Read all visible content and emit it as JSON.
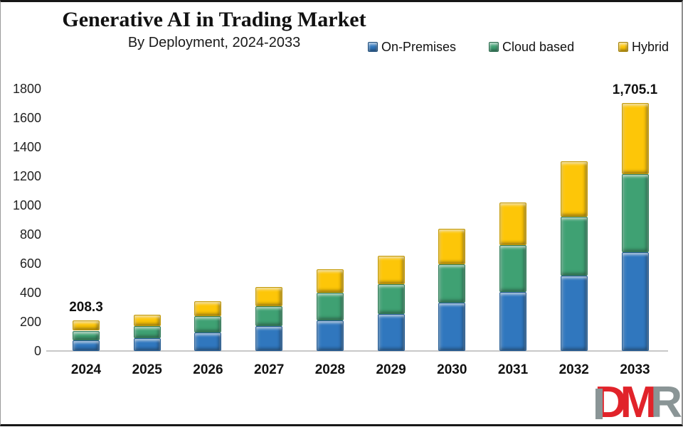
{
  "header": {
    "title": "Generative AI in Trading Market",
    "subtitle": "By Deployment, 2024-2033"
  },
  "legend": [
    {
      "label": "On-Premises",
      "color": "#3077be"
    },
    {
      "label": "Cloud based",
      "color": "#3fa173"
    },
    {
      "label": "Hybrid",
      "color": "#fdc608"
    }
  ],
  "chart_data": {
    "type": "bar",
    "stacked": true,
    "title": "Generative AI in Trading Market",
    "subtitle": "By Deployment, 2024-2033",
    "categories": [
      "2024",
      "2025",
      "2026",
      "2027",
      "2028",
      "2029",
      "2030",
      "2031",
      "2032",
      "2033"
    ],
    "series": [
      {
        "name": "On-Premises",
        "color": "#3077be",
        "values": [
          73.0,
          86.0,
          128.0,
          170.0,
          210.0,
          256.0,
          331.0,
          405.0,
          516.0,
          677.0
        ]
      },
      {
        "name": "Cloud based",
        "color": "#3fa173",
        "values": [
          66.0,
          84.0,
          109.0,
          139.0,
          192.0,
          205.0,
          263.0,
          322.0,
          406.0,
          536.0
        ]
      },
      {
        "name": "Hybrid",
        "color": "#fdc608",
        "values": [
          69.3,
          78.0,
          105.0,
          132.0,
          157.0,
          195.0,
          245.0,
          292.6,
          382.0,
          492.1
        ]
      }
    ],
    "totals": [
      208.3,
      248.0,
      342.0,
      441.0,
      559.0,
      656.0,
      839.0,
      1019.6,
      1304.0,
      1705.1
    ],
    "total_labels": {
      "2024": "208.3",
      "2033": "1,705.1"
    },
    "ylabel": "",
    "xlabel": "",
    "ylim": [
      0,
      1800
    ],
    "ytick_step": 200,
    "grid": false,
    "legend_position": "top-right",
    "axis_color": "#c8c8c8"
  },
  "logo": {
    "d": "D",
    "m": "M",
    "r": "R",
    "red": "#e1232a",
    "gray": "#8a9596"
  }
}
